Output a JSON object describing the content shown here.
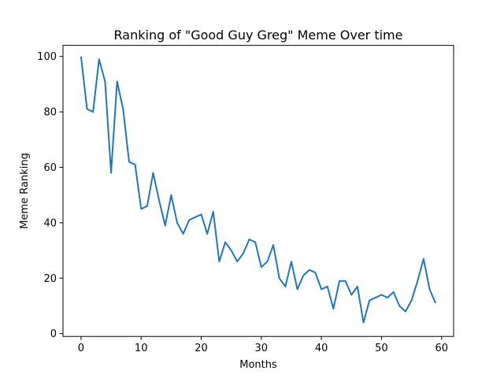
{
  "chart_data": {
    "type": "line",
    "title": "Ranking of \"Good Guy Greg\" Meme Over time",
    "xlabel": "Months",
    "ylabel": "Meme Ranking",
    "xlim": [
      -3,
      62
    ],
    "ylim": [
      -1,
      104
    ],
    "xticks": [
      0,
      10,
      20,
      30,
      40,
      50,
      60
    ],
    "yticks": [
      0,
      20,
      40,
      60,
      80,
      100
    ],
    "grid": false,
    "line_color": "#1f77b4",
    "x": [
      0,
      1,
      2,
      3,
      4,
      5,
      6,
      7,
      8,
      9,
      10,
      11,
      12,
      13,
      14,
      15,
      16,
      17,
      18,
      19,
      20,
      21,
      22,
      23,
      24,
      25,
      26,
      27,
      28,
      29,
      30,
      31,
      32,
      33,
      34,
      35,
      36,
      37,
      38,
      39,
      40,
      41,
      42,
      43,
      44,
      45,
      46,
      47,
      48,
      49,
      50,
      51,
      52,
      53,
      54,
      55,
      56,
      57,
      58,
      59
    ],
    "y": [
      100,
      81,
      80,
      99,
      91,
      58,
      91,
      81,
      62,
      61,
      45,
      46,
      58,
      48,
      39,
      50,
      40,
      36,
      41,
      42,
      43,
      36,
      44,
      26,
      33,
      30,
      26,
      29,
      34,
      33,
      24,
      26,
      32,
      20,
      17,
      26,
      16,
      21,
      23,
      22,
      16,
      17,
      9,
      19,
      19,
      14,
      17,
      4,
      12,
      13,
      14,
      13,
      15,
      10,
      8,
      12,
      19,
      27,
      16,
      11
    ]
  }
}
